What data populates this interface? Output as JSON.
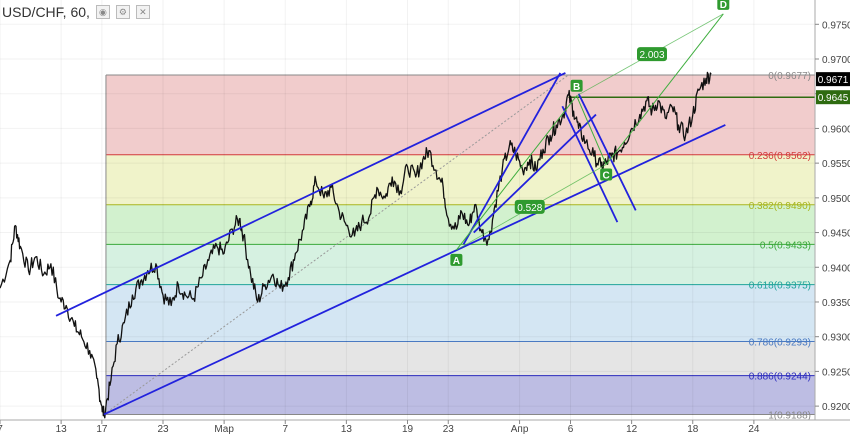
{
  "header": {
    "symbol_label": "USD/CHF, 60,",
    "icons": [
      "eye-icon",
      "settings-icon",
      "close-icon"
    ]
  },
  "chart_data": {
    "type": "line",
    "title": "USD/CHF, 60,",
    "y_ticks": [
      "0.9750",
      "0.9700",
      "0.9650",
      "0.9600",
      "0.9550",
      "0.9500",
      "0.9450",
      "0.9400",
      "0.9350",
      "0.9300",
      "0.9250",
      "0.9200"
    ],
    "y_tick_values": [
      0.975,
      0.97,
      0.965,
      0.96,
      0.955,
      0.95,
      0.945,
      0.94,
      0.935,
      0.93,
      0.925,
      0.92
    ],
    "ylim": [
      0.918,
      0.9785
    ],
    "x_ticks": [
      "7",
      "13",
      "17",
      "23",
      "Мар",
      "7",
      "13",
      "19",
      "23",
      "Апр",
      "6",
      "12",
      "18",
      "24"
    ],
    "x_tick_days": [
      0,
      6,
      10,
      16,
      22,
      28,
      34,
      40,
      44,
      51,
      56,
      62,
      68,
      74
    ],
    "xlim": [
      0,
      80
    ],
    "price_labels": [
      {
        "text": "0.9671",
        "value": 0.9671,
        "color": "#000000"
      },
      {
        "text": "0.9645",
        "value": 0.9645,
        "color": "#2e6b10"
      }
    ],
    "fib_levels": [
      {
        "label": "0(0.9677)",
        "value": 0.9677,
        "color": "#888888",
        "fill": "#f0c6c6"
      },
      {
        "label": "0.236(0.9562)",
        "value": 0.9562,
        "color": "#d23b3b",
        "fill": "#eef2c4"
      },
      {
        "label": "0.382(0.9490)",
        "value": 0.949,
        "color": "#a7b61f",
        "fill": "#cdf0c9"
      },
      {
        "label": "0.5(0.9433)",
        "value": 0.9433,
        "color": "#3aa83a",
        "fill": "#d2efde"
      },
      {
        "label": "0.618(0.9375)",
        "value": 0.9375,
        "color": "#1fa39a",
        "fill": "#cfe3f2"
      },
      {
        "label": "0.786(0.9293)",
        "value": 0.9293,
        "color": "#4a7ac2",
        "fill": "#e2e2e2"
      },
      {
        "label": "0.886(0.9244)",
        "value": 0.9244,
        "color": "#2b2bbd",
        "fill": "#b6b6e0"
      },
      {
        "label": "1(0.9188)",
        "value": 0.9188,
        "color": "#888888",
        "fill": null
      }
    ],
    "fib_x_start": 10.4,
    "abcd_points": [
      {
        "label": "A",
        "x": 44.8,
        "y": 0.9425
      },
      {
        "label": "B",
        "x": 56.6,
        "y": 0.9647
      },
      {
        "label": "C",
        "x": 59.5,
        "y": 0.9548
      },
      {
        "label": "D",
        "x": 71.0,
        "y": 0.9765
      }
    ],
    "ratio_labels": [
      {
        "text": "0.528",
        "x": 52.0,
        "y": 0.9487
      },
      {
        "text": "2.003",
        "x": 64.0,
        "y": 0.9707
      }
    ],
    "trend_lines": [
      {
        "x1": 5.5,
        "y1": 0.933,
        "x2": 55.5,
        "y2": 0.968
      },
      {
        "x1": 10.2,
        "y1": 0.9188,
        "x2": 71.2,
        "y2": 0.9605
      },
      {
        "x1": 45.5,
        "y1": 0.9433,
        "x2": 55.0,
        "y2": 0.968
      },
      {
        "x1": 46.5,
        "y1": 0.945,
        "x2": 58.5,
        "y2": 0.962
      },
      {
        "x1": 55.2,
        "y1": 0.9632,
        "x2": 60.6,
        "y2": 0.9465
      },
      {
        "x1": 56.8,
        "y1": 0.965,
        "x2": 62.4,
        "y2": 0.9482
      }
    ],
    "reference_line": {
      "x1": 10.2,
      "y1": 0.9188,
      "x2": 55.8,
      "y2": 0.9677
    },
    "horizontal_line": {
      "x1": 55.8,
      "x2": 80,
      "y": 0.9645
    },
    "price_series": [
      [
        0.0,
        0.937
      ],
      [
        1.0,
        0.941
      ],
      [
        1.5,
        0.946
      ],
      [
        2.0,
        0.943
      ],
      [
        2.8,
        0.9395
      ],
      [
        3.5,
        0.9415
      ],
      [
        4.3,
        0.939
      ],
      [
        5.0,
        0.9405
      ],
      [
        5.8,
        0.9355
      ],
      [
        6.5,
        0.9345
      ],
      [
        7.3,
        0.9315
      ],
      [
        8.0,
        0.93
      ],
      [
        8.8,
        0.928
      ],
      [
        9.5,
        0.924
      ],
      [
        10.0,
        0.92
      ],
      [
        10.2,
        0.9188
      ],
      [
        10.8,
        0.923
      ],
      [
        11.5,
        0.929
      ],
      [
        12.2,
        0.932
      ],
      [
        13.0,
        0.936
      ],
      [
        13.8,
        0.938
      ],
      [
        14.5,
        0.9395
      ],
      [
        15.3,
        0.9405
      ],
      [
        16.0,
        0.936
      ],
      [
        16.8,
        0.9345
      ],
      [
        17.5,
        0.9375
      ],
      [
        18.2,
        0.936
      ],
      [
        19.0,
        0.9355
      ],
      [
        19.8,
        0.9385
      ],
      [
        20.5,
        0.941
      ],
      [
        21.3,
        0.943
      ],
      [
        22.0,
        0.942
      ],
      [
        22.8,
        0.9455
      ],
      [
        23.5,
        0.947
      ],
      [
        23.9,
        0.9445
      ],
      [
        24.6,
        0.939
      ],
      [
        25.3,
        0.935
      ],
      [
        26.0,
        0.9375
      ],
      [
        26.8,
        0.939
      ],
      [
        27.5,
        0.937
      ],
      [
        28.3,
        0.9385
      ],
      [
        29.0,
        0.942
      ],
      [
        29.8,
        0.9455
      ],
      [
        30.5,
        0.9495
      ],
      [
        31.0,
        0.9525
      ],
      [
        31.8,
        0.95
      ],
      [
        32.5,
        0.9515
      ],
      [
        33.3,
        0.948
      ],
      [
        34.0,
        0.946
      ],
      [
        34.8,
        0.9445
      ],
      [
        35.5,
        0.9465
      ],
      [
        36.3,
        0.9475
      ],
      [
        37.0,
        0.9515
      ],
      [
        37.8,
        0.95
      ],
      [
        38.5,
        0.953
      ],
      [
        39.3,
        0.951
      ],
      [
        40.0,
        0.9545
      ],
      [
        40.8,
        0.953
      ],
      [
        41.5,
        0.9555
      ],
      [
        42.1,
        0.9568
      ],
      [
        42.8,
        0.954
      ],
      [
        43.5,
        0.9515
      ],
      [
        44.0,
        0.947
      ],
      [
        44.8,
        0.9455
      ],
      [
        45.3,
        0.948
      ],
      [
        46.0,
        0.946
      ],
      [
        46.6,
        0.949
      ],
      [
        47.3,
        0.945
      ],
      [
        48.0,
        0.944
      ],
      [
        48.6,
        0.949
      ],
      [
        49.3,
        0.954
      ],
      [
        50.0,
        0.9575
      ],
      [
        50.6,
        0.9565
      ],
      [
        51.3,
        0.954
      ],
      [
        52.0,
        0.9555
      ],
      [
        52.6,
        0.954
      ],
      [
        53.3,
        0.957
      ],
      [
        54.0,
        0.959
      ],
      [
        54.6,
        0.9605
      ],
      [
        55.3,
        0.962
      ],
      [
        55.8,
        0.9648
      ],
      [
        56.3,
        0.9625
      ],
      [
        56.8,
        0.96
      ],
      [
        57.5,
        0.958
      ],
      [
        58.3,
        0.956
      ],
      [
        59.0,
        0.9545
      ],
      [
        59.5,
        0.955
      ],
      [
        60.0,
        0.956
      ],
      [
        60.6,
        0.9565
      ],
      [
        61.3,
        0.958
      ],
      [
        62.0,
        0.96
      ],
      [
        62.8,
        0.962
      ],
      [
        63.5,
        0.964
      ],
      [
        64.0,
        0.9625
      ],
      [
        64.6,
        0.964
      ],
      [
        65.3,
        0.9615
      ],
      [
        66.0,
        0.963
      ],
      [
        66.6,
        0.9605
      ],
      [
        67.3,
        0.959
      ],
      [
        68.0,
        0.962
      ],
      [
        68.6,
        0.9655
      ],
      [
        69.3,
        0.9672
      ],
      [
        69.8,
        0.9678
      ]
    ]
  }
}
